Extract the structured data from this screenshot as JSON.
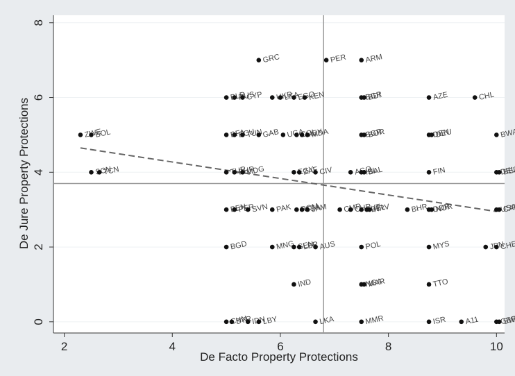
{
  "chart_data": {
    "type": "scatter",
    "title": "",
    "xlabel": "De Facto Property Protections",
    "ylabel": "De Jure Property Protections",
    "xlim": [
      1.8,
      10.15
    ],
    "ylim": [
      -0.3,
      8.2
    ],
    "xticks": [
      "2",
      "4",
      "6",
      "8",
      "10"
    ],
    "yticks": [
      "0",
      "2",
      "4",
      "6",
      "8"
    ],
    "grid": true,
    "mean_lines": {
      "x": 6.8,
      "y": 3.7
    },
    "fit_line": {
      "x": [
        2.3,
        10.0
      ],
      "y": [
        4.65,
        2.95
      ],
      "style": "dashed"
    },
    "points": [
      {
        "x": 2.3,
        "y": 5,
        "label": "ZWE"
      },
      {
        "x": 2.5,
        "y": 5,
        "label": "BOL"
      },
      {
        "x": 2.5,
        "y": 4,
        "label": "SCN"
      },
      {
        "x": 2.65,
        "y": 4,
        "label": "TCN"
      },
      {
        "x": 5.6,
        "y": 7,
        "label": "GRC"
      },
      {
        "x": 6.85,
        "y": 7,
        "label": "PER"
      },
      {
        "x": 7.5,
        "y": 7,
        "label": "ARM"
      },
      {
        "x": 5.0,
        "y": 6,
        "label": "BLR"
      },
      {
        "x": 5.15,
        "y": 6,
        "label": "RUS"
      },
      {
        "x": 5.3,
        "y": 6,
        "label": "CYP"
      },
      {
        "x": 5.85,
        "y": 6,
        "label": "UKR"
      },
      {
        "x": 6.0,
        "y": 6,
        "label": "LKA"
      },
      {
        "x": 6.25,
        "y": 6,
        "label": "EGO"
      },
      {
        "x": 6.45,
        "y": 6,
        "label": "KEN"
      },
      {
        "x": 7.5,
        "y": 6,
        "label": "BGR"
      },
      {
        "x": 7.55,
        "y": 6,
        "label": "BDI"
      },
      {
        "x": 8.75,
        "y": 6,
        "label": "AZE"
      },
      {
        "x": 9.6,
        "y": 6,
        "label": "CHL"
      },
      {
        "x": 5.0,
        "y": 5,
        "label": "BFA"
      },
      {
        "x": 5.15,
        "y": 5,
        "label": "ECU"
      },
      {
        "x": 5.3,
        "y": 5,
        "label": "TUN"
      },
      {
        "x": 5.6,
        "y": 5,
        "label": "GAB"
      },
      {
        "x": 6.05,
        "y": 5,
        "label": "UGA"
      },
      {
        "x": 6.3,
        "y": 5,
        "label": "COL"
      },
      {
        "x": 6.4,
        "y": 5,
        "label": "MEX"
      },
      {
        "x": 6.5,
        "y": 5,
        "label": "MDA"
      },
      {
        "x": 7.5,
        "y": 5,
        "label": "BGR"
      },
      {
        "x": 7.55,
        "y": 5,
        "label": "BOR"
      },
      {
        "x": 8.75,
        "y": 5,
        "label": "DEN"
      },
      {
        "x": 8.8,
        "y": 5,
        "label": "DEU"
      },
      {
        "x": 10.0,
        "y": 5,
        "label": "BWA"
      },
      {
        "x": 5.0,
        "y": 4,
        "label": "TUR"
      },
      {
        "x": 5.15,
        "y": 4,
        "label": "BHR"
      },
      {
        "x": 5.3,
        "y": 4,
        "label": "MDG"
      },
      {
        "x": 6.25,
        "y": 4,
        "label": "EGY"
      },
      {
        "x": 6.35,
        "y": 4,
        "label": "ZAF"
      },
      {
        "x": 6.65,
        "y": 4,
        "label": "CIV"
      },
      {
        "x": 7.3,
        "y": 4,
        "label": "AGO"
      },
      {
        "x": 7.5,
        "y": 4,
        "label": "ISL"
      },
      {
        "x": 7.55,
        "y": 4,
        "label": "BAL"
      },
      {
        "x": 8.75,
        "y": 4,
        "label": "FIN"
      },
      {
        "x": 10.0,
        "y": 4,
        "label": "DEU"
      },
      {
        "x": 10.05,
        "y": 4,
        "label": "BEL"
      },
      {
        "x": 5.0,
        "y": 3,
        "label": "BEN"
      },
      {
        "x": 5.15,
        "y": 3,
        "label": "PER"
      },
      {
        "x": 5.4,
        "y": 3,
        "label": "SVN"
      },
      {
        "x": 5.85,
        "y": 3,
        "label": "PAK"
      },
      {
        "x": 6.3,
        "y": 3,
        "label": "ROM"
      },
      {
        "x": 6.4,
        "y": 3,
        "label": "TZA"
      },
      {
        "x": 6.5,
        "y": 3,
        "label": "JAM"
      },
      {
        "x": 7.1,
        "y": 3,
        "label": "CMR"
      },
      {
        "x": 7.3,
        "y": 3,
        "label": "CHR"
      },
      {
        "x": 7.5,
        "y": 3,
        "label": "AUT"
      },
      {
        "x": 7.6,
        "y": 3,
        "label": "BEL"
      },
      {
        "x": 7.65,
        "y": 3,
        "label": "HRV"
      },
      {
        "x": 8.35,
        "y": 3,
        "label": "BHR"
      },
      {
        "x": 8.75,
        "y": 3,
        "label": "DOR"
      },
      {
        "x": 8.8,
        "y": 3,
        "label": "NOR"
      },
      {
        "x": 10.0,
        "y": 3,
        "label": "USA"
      },
      {
        "x": 10.05,
        "y": 3,
        "label": "CAN"
      },
      {
        "x": 5.0,
        "y": 2,
        "label": "BGD"
      },
      {
        "x": 5.85,
        "y": 2,
        "label": "MNG"
      },
      {
        "x": 6.25,
        "y": 2,
        "label": "SEN"
      },
      {
        "x": 6.35,
        "y": 2,
        "label": "LBR"
      },
      {
        "x": 6.65,
        "y": 2,
        "label": "AUS"
      },
      {
        "x": 7.5,
        "y": 2,
        "label": "POL"
      },
      {
        "x": 8.75,
        "y": 2,
        "label": "MYS"
      },
      {
        "x": 9.8,
        "y": 2,
        "label": "JPN"
      },
      {
        "x": 10.0,
        "y": 2,
        "label": "CHE"
      },
      {
        "x": 6.25,
        "y": 1,
        "label": "IND"
      },
      {
        "x": 7.5,
        "y": 1,
        "label": "NGA"
      },
      {
        "x": 7.55,
        "y": 1,
        "label": "MAR"
      },
      {
        "x": 8.75,
        "y": 1,
        "label": "TTO"
      },
      {
        "x": 5.0,
        "y": 0,
        "label": "CHN"
      },
      {
        "x": 5.1,
        "y": 0,
        "label": "SYR"
      },
      {
        "x": 5.4,
        "y": 0,
        "label": "IDN"
      },
      {
        "x": 5.6,
        "y": 0,
        "label": "LBY"
      },
      {
        "x": 6.65,
        "y": 0,
        "label": "LKA"
      },
      {
        "x": 7.5,
        "y": 0,
        "label": "MMR"
      },
      {
        "x": 8.75,
        "y": 0,
        "label": "ISR"
      },
      {
        "x": 9.35,
        "y": 0,
        "label": "A11"
      },
      {
        "x": 10.0,
        "y": 0,
        "label": "GBR"
      },
      {
        "x": 10.05,
        "y": 0,
        "label": "SWE"
      }
    ]
  }
}
